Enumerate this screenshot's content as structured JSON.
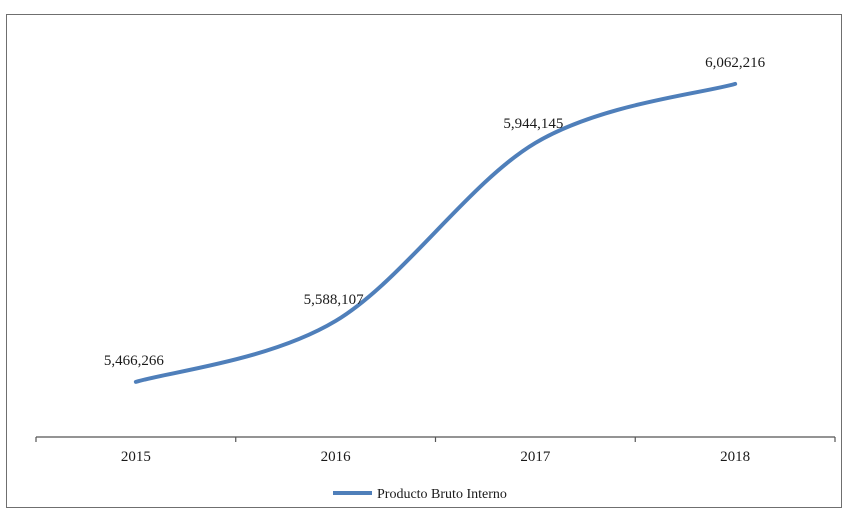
{
  "chart_data": {
    "type": "line",
    "categories": [
      "2015",
      "2016",
      "2017",
      "2018"
    ],
    "series": [
      {
        "name": "Producto Bruto Interno",
        "values": [
          5466266,
          5588107,
          5944145,
          6062216
        ],
        "value_labels": [
          "5,466,266",
          "5,588,107",
          "5,944,145",
          "6,062,216"
        ],
        "color": "#4f7fba"
      }
    ],
    "title": "",
    "xlabel": "",
    "ylabel": "",
    "ylim": [
      5380000,
      6110000
    ],
    "grid": false,
    "legend_position": "bottom"
  }
}
